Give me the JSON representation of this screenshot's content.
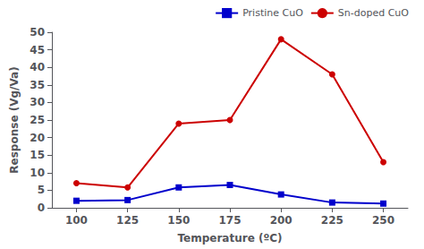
{
  "chart_data": {
    "type": "line",
    "xlabel": "Temperature (ºC)",
    "ylabel": "Response (Vg/Va)",
    "x": [
      100,
      125,
      150,
      175,
      200,
      225,
      250
    ],
    "series": [
      {
        "name": "Pristine CuO",
        "color": "#0000cc",
        "marker": "square",
        "values": [
          2,
          2.2,
          5.8,
          6.5,
          3.8,
          1.5,
          1.2
        ]
      },
      {
        "name": "Sn-doped CuO",
        "color": "#cc0000",
        "marker": "circle",
        "values": [
          7,
          5.8,
          24,
          25,
          48,
          38,
          13
        ]
      }
    ],
    "xlim": [
      88,
      262
    ],
    "xticks": [
      100,
      125,
      150,
      175,
      200,
      225,
      250
    ],
    "ylim": [
      0,
      50
    ],
    "yticks": [
      0,
      5,
      10,
      15,
      20,
      25,
      30,
      35,
      40,
      45,
      50
    ],
    "legend": "upper right",
    "grid": false
  }
}
